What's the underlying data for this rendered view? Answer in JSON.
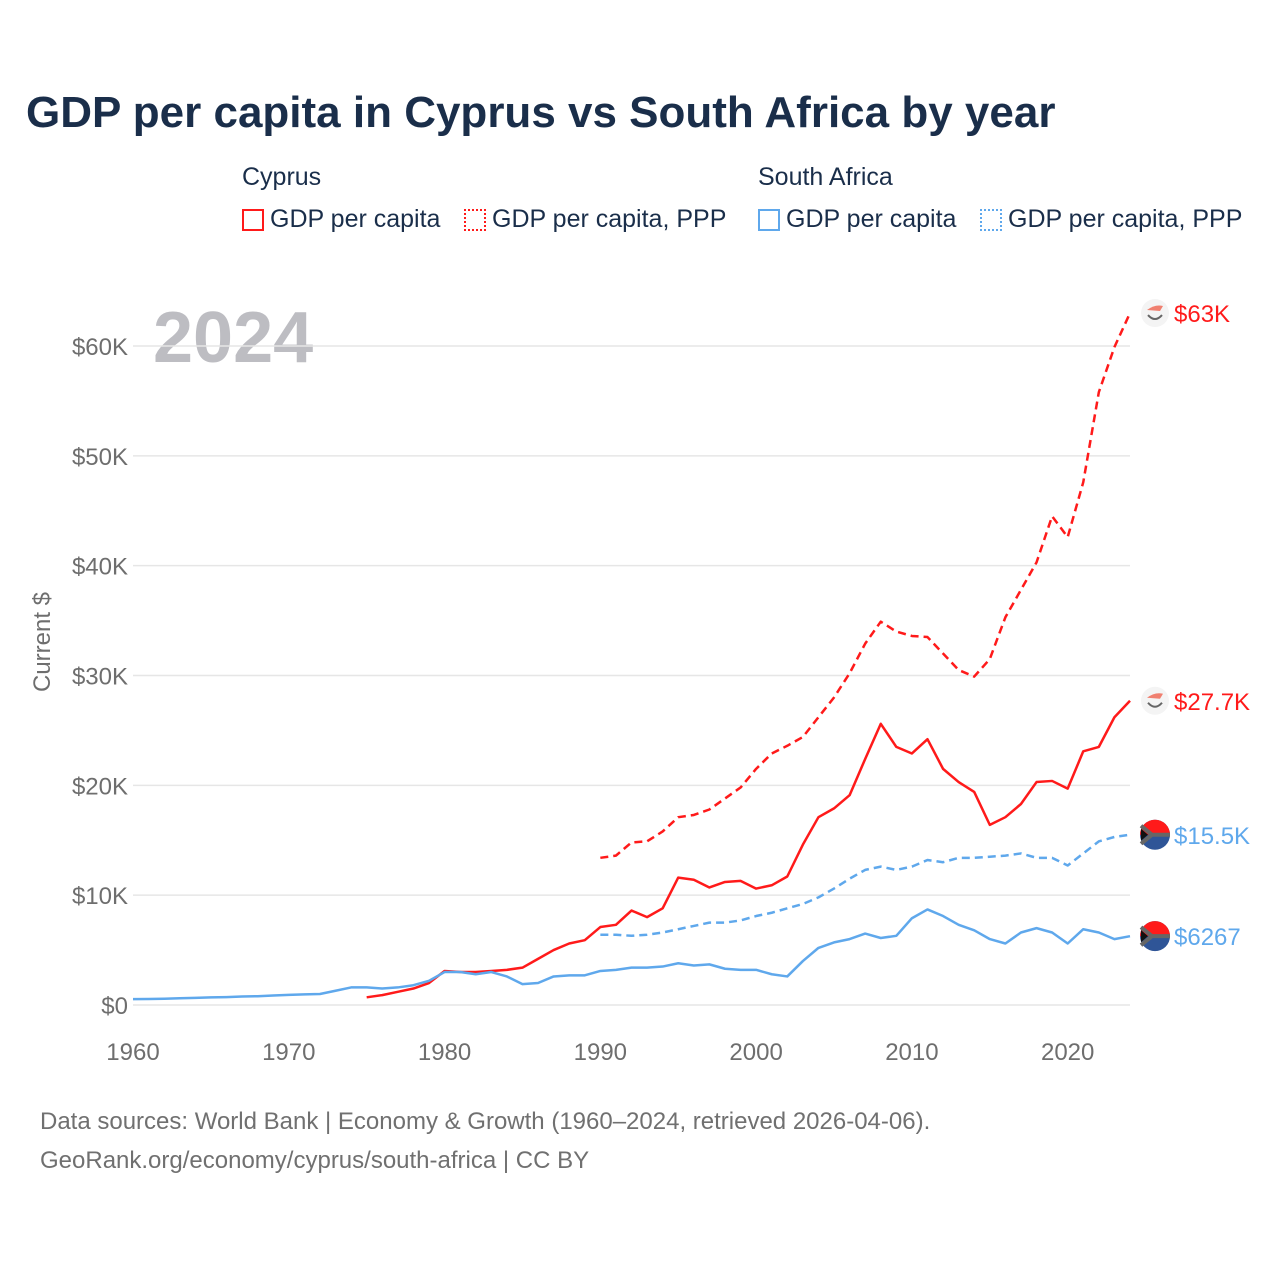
{
  "title": "GDP per capita in Cyprus vs South Africa by year",
  "legend": {
    "groups": [
      {
        "name": "Cyprus",
        "items": [
          "GDP per capita",
          "GDP per capita, PPP"
        ]
      },
      {
        "name": "South Africa",
        "items": [
          "GDP per capita",
          "GDP per capita, PPP"
        ]
      }
    ]
  },
  "source": [
    "Data sources: World Bank | Economy & Growth (1960–2024, retrieved 2026-04-06).",
    "GeoRank.org/economy/cyprus/south-africa | CC BY"
  ],
  "colors": {
    "cyprus": "#ff1a1a",
    "south_africa": "#5fa8ec"
  },
  "chart_data": {
    "type": "line",
    "title": "GDP per capita in Cyprus vs South Africa by year",
    "year_label": "2024",
    "xlabel": "",
    "ylabel": "Current $",
    "xlim": [
      1960,
      2024
    ],
    "ylim": [
      0,
      60000
    ],
    "x_ticks": [
      "1960",
      "1970",
      "1980",
      "1990",
      "2000",
      "2010",
      "2020"
    ],
    "y_ticks": [
      "$0",
      "$10K",
      "$20K",
      "$30K",
      "$40K",
      "$50K",
      "$60K"
    ],
    "series": [
      {
        "name": "Cyprus GDP per capita",
        "country": "cyprus",
        "dashed": false,
        "start": 1975,
        "end_label": "$27.7K",
        "values": [
          0.7,
          0.9,
          1.2,
          1.5,
          2.0,
          3.1,
          3.0,
          3.0,
          3.1,
          3.2,
          3.4,
          4.2,
          5.0,
          5.6,
          5.9,
          7.1,
          7.3,
          8.6,
          8.0,
          8.8,
          11.6,
          11.4,
          10.7,
          11.2,
          11.3,
          10.6,
          10.9,
          11.7,
          14.6,
          17.1,
          17.9,
          19.1,
          22.4,
          25.6,
          23.5,
          22.9,
          24.2,
          21.5,
          20.3,
          19.4,
          16.4,
          17.1,
          18.3,
          20.3,
          20.4,
          19.7,
          23.1,
          23.5,
          26.2,
          27.7
        ]
      },
      {
        "name": "Cyprus GDP per capita, PPP",
        "country": "cyprus",
        "dashed": true,
        "start": 1990,
        "end_label": "$63K",
        "values": [
          13.4,
          13.6,
          14.8,
          14.9,
          15.8,
          17.1,
          17.3,
          17.8,
          18.8,
          19.8,
          21.5,
          22.9,
          23.6,
          24.4,
          26.2,
          28.0,
          30.2,
          32.9,
          34.9,
          34.0,
          33.6,
          33.5,
          32.0,
          30.5,
          29.9,
          31.5,
          35.3,
          37.8,
          40.3,
          44.5,
          42.6,
          47.6,
          55.8,
          59.9,
          63.0
        ]
      },
      {
        "name": "South Africa GDP per capita",
        "country": "south_africa",
        "dashed": false,
        "start": 1960,
        "end_label": "$6267",
        "values": [
          0.53,
          0.55,
          0.57,
          0.61,
          0.65,
          0.69,
          0.72,
          0.77,
          0.8,
          0.87,
          0.92,
          0.97,
          1.0,
          1.3,
          1.6,
          1.6,
          1.5,
          1.6,
          1.8,
          2.2,
          3.0,
          3.0,
          2.8,
          3.0,
          2.6,
          1.9,
          2.0,
          2.6,
          2.7,
          2.7,
          3.1,
          3.2,
          3.4,
          3.4,
          3.5,
          3.8,
          3.6,
          3.7,
          3.3,
          3.2,
          3.2,
          2.8,
          2.6,
          4.0,
          5.2,
          5.7,
          6.0,
          6.5,
          6.1,
          6.3,
          7.9,
          8.7,
          8.1,
          7.3,
          6.8,
          6.0,
          5.6,
          6.6,
          7.0,
          6.6,
          5.6,
          6.9,
          6.6,
          6.0,
          6.267
        ]
      },
      {
        "name": "South Africa GDP per capita, PPP",
        "country": "south_africa",
        "dashed": true,
        "start": 1990,
        "end_label": "$15.5K",
        "values": [
          6.4,
          6.4,
          6.3,
          6.4,
          6.6,
          6.9,
          7.2,
          7.5,
          7.5,
          7.7,
          8.1,
          8.4,
          8.8,
          9.2,
          9.8,
          10.6,
          11.5,
          12.3,
          12.6,
          12.3,
          12.6,
          13.2,
          13.0,
          13.4,
          13.4,
          13.5,
          13.6,
          13.8,
          13.4,
          13.4,
          12.7,
          13.8,
          14.9,
          15.3,
          15.5
        ]
      }
    ],
    "value_unit": "thousands USD"
  }
}
